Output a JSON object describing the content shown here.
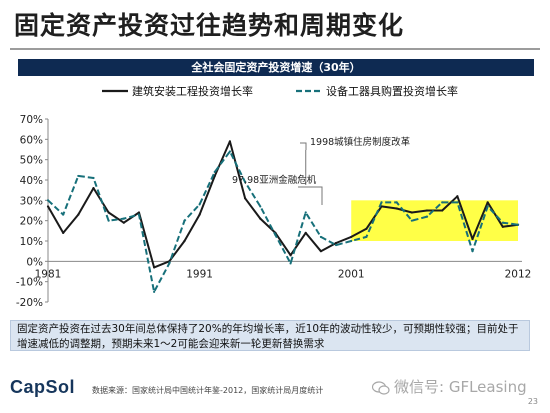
{
  "slide": {
    "title": "固定资产投资过往趋势和周期变化",
    "summary": "固定资产投资在过去30年间总体保持了20%的年均增长率，近10年的波动性较少，可预期性较强；目前处于增速减低的调整期，预期未来1～2可能会迎来新一轮更新替换需求",
    "brand": "CapSol",
    "source": "数据来源：国家统计局中国统计年鉴-2012，国家统计局月度统计",
    "watermark": "微信号: GFLeasing",
    "watermark_icon": "wechat-icon",
    "page_number": "23"
  },
  "chart_data": {
    "type": "line",
    "title": "全社会固定资产投资增速（30年）",
    "x_tick_labels": [
      "1981",
      "1991",
      "2001",
      "2012"
    ],
    "xlim": [
      1981,
      2012
    ],
    "ylim": [
      -20,
      70
    ],
    "y_tick_labels": [
      "-20%",
      "-10%",
      "0%",
      "10%",
      "20%",
      "30%",
      "40%",
      "50%",
      "60%",
      "70%"
    ],
    "y_ticks": [
      -20,
      -10,
      0,
      10,
      20,
      30,
      40,
      50,
      60,
      70
    ],
    "grid": false,
    "legend_position": "top",
    "x": [
      1981,
      1982,
      1983,
      1984,
      1985,
      1986,
      1987,
      1988,
      1989,
      1990,
      1991,
      1992,
      1993,
      1994,
      1995,
      1996,
      1997,
      1998,
      1999,
      2000,
      2001,
      2002,
      2003,
      2004,
      2005,
      2006,
      2007,
      2008,
      2009,
      2010,
      2011,
      2012
    ],
    "series": [
      {
        "name": "建筑安装工程投资增长率",
        "style": "solid",
        "color": "#1a1a1a",
        "values": [
          27,
          14,
          23,
          36,
          24,
          19,
          24,
          -3,
          0,
          10,
          23,
          42,
          59,
          31,
          21,
          14,
          3,
          14,
          5,
          9,
          12,
          16,
          27,
          26,
          24,
          25,
          25,
          32,
          11,
          29,
          17,
          18
        ]
      },
      {
        "name": "设备工器具购置投资增长率",
        "style": "dashed",
        "color": "#17707a",
        "values": [
          30,
          23,
          42,
          41,
          20,
          21,
          23,
          -15,
          -1,
          20,
          28,
          44,
          54,
          39,
          27,
          13,
          -1,
          24,
          12,
          8,
          10,
          12,
          29,
          29,
          20,
          22,
          29,
          29,
          5,
          27,
          19,
          18
        ]
      }
    ],
    "annotations": [
      {
        "text": "1998城镇住房制度改革",
        "year": 1998
      },
      {
        "text": "97,98亚洲金融危机",
        "year": 1997.5
      }
    ],
    "highlight_band": {
      "x": [
        2001,
        2012
      ],
      "y": [
        10,
        30
      ],
      "color": "#ffff33"
    }
  }
}
